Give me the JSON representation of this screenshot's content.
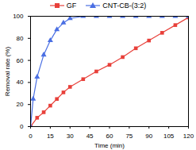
{
  "chart_data": {
    "type": "line",
    "xlabel": "Time (min)",
    "ylabel": "Removal rate (%)",
    "xlim": [
      0,
      120
    ],
    "ylim": [
      0,
      100
    ],
    "xticks": [
      0,
      15,
      30,
      45,
      60,
      75,
      90,
      105,
      120
    ],
    "yticks": [
      0,
      20,
      40,
      60,
      80,
      100
    ],
    "series": [
      {
        "name": "GF",
        "color": "#e8403a",
        "marker": "square",
        "x": [
          0,
          5,
          10,
          15,
          20,
          25,
          30,
          40,
          50,
          60,
          70,
          80,
          90,
          100,
          110,
          120
        ],
        "values": [
          0,
          8,
          13,
          19,
          25,
          31,
          36,
          43,
          50,
          56,
          63,
          71,
          78,
          85,
          92,
          99
        ]
      },
      {
        "name": "CNT-CB-(3:2)",
        "color": "#4a6fe3",
        "marker": "triangle",
        "x": [
          0,
          2,
          5,
          10,
          15,
          20,
          25,
          30,
          40,
          50,
          60,
          70,
          80,
          90,
          100,
          110,
          120
        ],
        "values": [
          0,
          25,
          45,
          65,
          78,
          88,
          94,
          98,
          100,
          100,
          100,
          100,
          100,
          100,
          100,
          100,
          100
        ]
      }
    ]
  }
}
